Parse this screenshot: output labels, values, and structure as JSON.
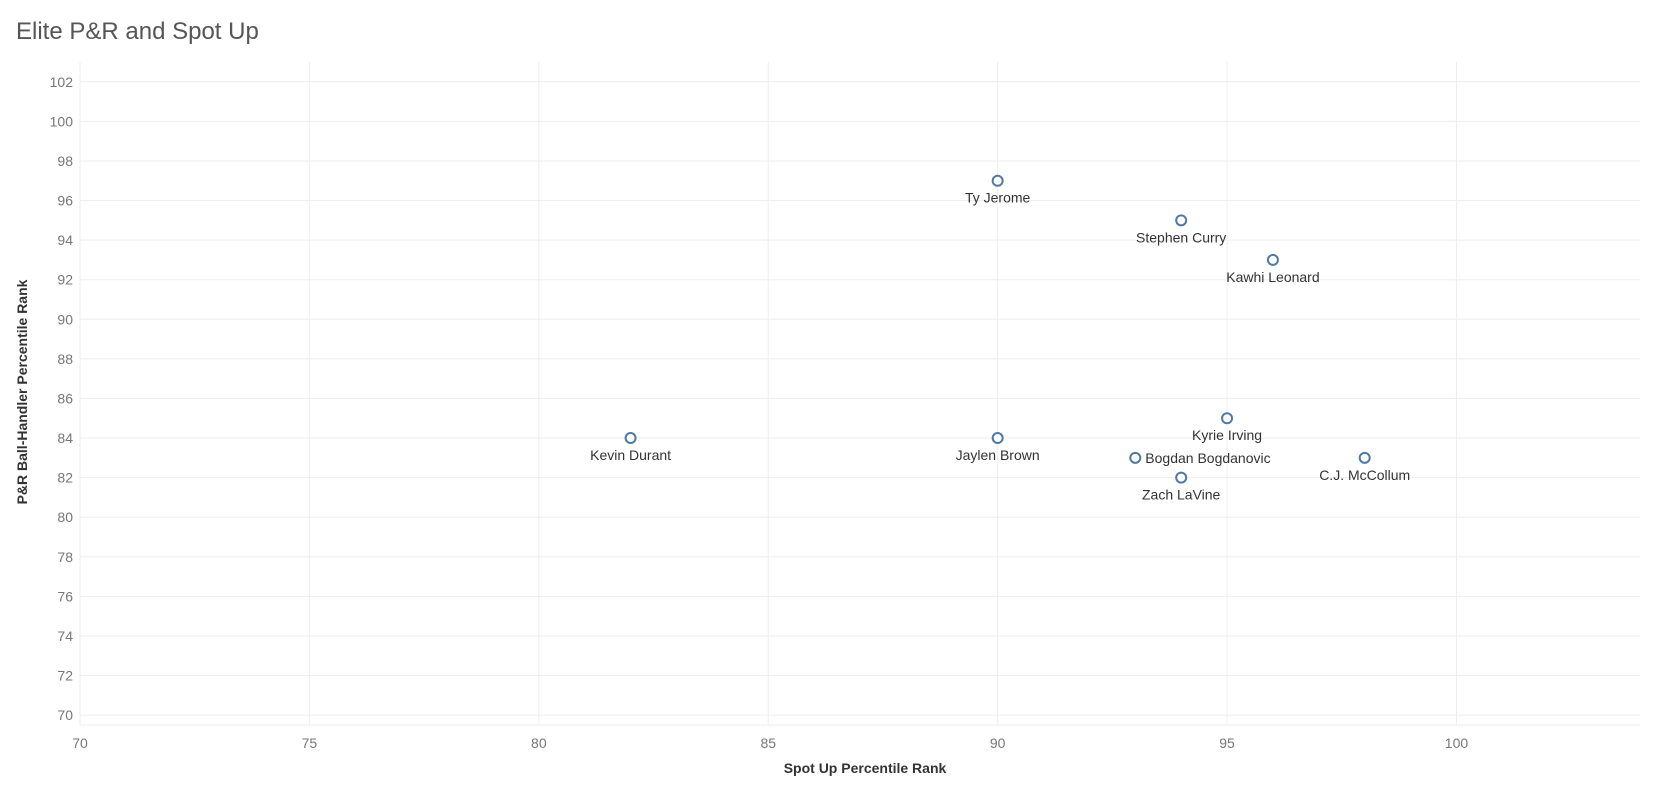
{
  "page": {
    "title": "Elite P&R and Spot Up"
  },
  "chart_data": {
    "type": "scatter",
    "title": "Elite P&R and Spot Up",
    "xlabel": "Spot Up Percentile Rank",
    "ylabel": "P&R Ball-Handler Percentile Rank",
    "xlim": [
      70,
      104
    ],
    "ylim": [
      69.5,
      103
    ],
    "x_ticks": [
      70,
      75,
      80,
      85,
      90,
      95,
      100
    ],
    "y_ticks": [
      70,
      72,
      74,
      76,
      78,
      80,
      82,
      84,
      86,
      88,
      90,
      92,
      94,
      96,
      98,
      100,
      102
    ],
    "grid": true,
    "marker": "open-circle",
    "color": "#4e79a7",
    "points": [
      {
        "label": "Ty Jerome",
        "x": 90,
        "y": 97
      },
      {
        "label": "Stephen Curry",
        "x": 94,
        "y": 95
      },
      {
        "label": "Kawhi Leonard",
        "x": 96,
        "y": 93
      },
      {
        "label": "Kyrie Irving",
        "x": 95,
        "y": 85
      },
      {
        "label": "Kevin Durant",
        "x": 82,
        "y": 84
      },
      {
        "label": "Jaylen Brown",
        "x": 90,
        "y": 84
      },
      {
        "label": "Bogdan Bogdanovic",
        "x": 93,
        "y": 83
      },
      {
        "label": "C.J. McCollum",
        "x": 98,
        "y": 83
      },
      {
        "label": "Zach LaVine",
        "x": 94,
        "y": 82
      }
    ]
  }
}
